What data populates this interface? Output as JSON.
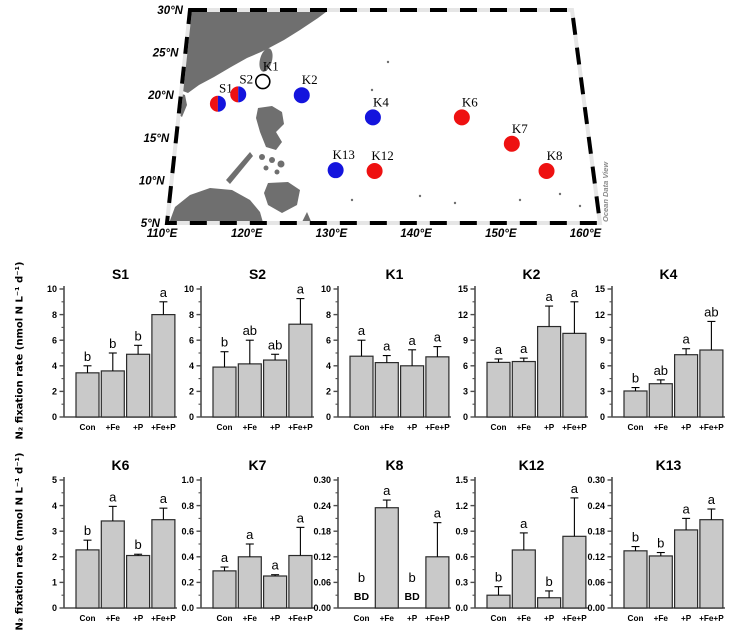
{
  "map": {
    "watermark": "Ocean Data View",
    "lat_labels": [
      "30°N",
      "25°N",
      "20°N",
      "15°N",
      "10°N",
      "5°N"
    ],
    "lon_labels": [
      "110°E",
      "120°E",
      "130°E",
      "140°E",
      "150°E",
      "160°E"
    ],
    "lat_range": [
      5,
      30
    ],
    "lon_range": [
      110,
      160
    ],
    "marker_colors": {
      "red": "#ee1111",
      "blue": "#1414dd",
      "open": "#ffffff",
      "land": "#6f6f6f"
    },
    "stations": [
      {
        "id": "S1",
        "lon": 116.6,
        "lat": 19.0,
        "type": "split"
      },
      {
        "id": "S2",
        "lon": 119.0,
        "lat": 20.1,
        "type": "split"
      },
      {
        "id": "K1",
        "lon": 121.9,
        "lat": 21.6,
        "type": "open"
      },
      {
        "id": "K2",
        "lon": 126.5,
        "lat": 20.0,
        "type": "blue"
      },
      {
        "id": "K4",
        "lon": 134.9,
        "lat": 17.4,
        "type": "blue"
      },
      {
        "id": "K6",
        "lon": 145.4,
        "lat": 17.4,
        "type": "red"
      },
      {
        "id": "K7",
        "lon": 151.3,
        "lat": 14.3,
        "type": "red"
      },
      {
        "id": "K8",
        "lon": 155.4,
        "lat": 11.1,
        "type": "red"
      },
      {
        "id": "K12",
        "lon": 135.1,
        "lat": 11.1,
        "type": "red"
      },
      {
        "id": "K13",
        "lon": 130.5,
        "lat": 11.2,
        "type": "blue"
      }
    ]
  },
  "ylabel": "N₂ fixation rate (nmol N L⁻¹ d⁻¹)",
  "bar_style": {
    "fill": "#c9c9c9",
    "stroke": "#2b2b2b"
  },
  "chart_data": [
    {
      "type": "bar",
      "title": "S1",
      "row": 1,
      "col": 0,
      "ylim": [
        0,
        10
      ],
      "ytick_step": 2,
      "tick_decimals": 0,
      "categories": [
        "Con",
        "+Fe",
        "+P",
        "+Fe+P"
      ],
      "values": [
        3.45,
        3.6,
        4.9,
        8.0
      ],
      "errors": [
        0.55,
        1.4,
        0.7,
        1.0
      ],
      "letters": [
        "b",
        "b",
        "b",
        "a"
      ]
    },
    {
      "type": "bar",
      "title": "S2",
      "row": 1,
      "col": 1,
      "ylim": [
        0,
        10
      ],
      "ytick_step": 2,
      "tick_decimals": 0,
      "categories": [
        "Con",
        "+Fe",
        "+P",
        "+Fe+P"
      ],
      "values": [
        3.9,
        4.15,
        4.45,
        7.25
      ],
      "errors": [
        1.2,
        1.85,
        0.45,
        2.0
      ],
      "letters": [
        "b",
        "ab",
        "ab",
        "a"
      ]
    },
    {
      "type": "bar",
      "title": "K1",
      "row": 1,
      "col": 2,
      "ylim": [
        0,
        10
      ],
      "ytick_step": 2,
      "tick_decimals": 0,
      "categories": [
        "Con",
        "+Fe",
        "+P",
        "+Fe+P"
      ],
      "values": [
        4.75,
        4.25,
        4.0,
        4.7
      ],
      "errors": [
        1.25,
        0.55,
        1.25,
        0.8
      ],
      "letters": [
        "a",
        "a",
        "a",
        "a"
      ]
    },
    {
      "type": "bar",
      "title": "K2",
      "row": 1,
      "col": 3,
      "ylim": [
        0,
        15
      ],
      "ytick_step": 3,
      "tick_decimals": 0,
      "categories": [
        "Con",
        "+Fe",
        "+P",
        "+Fe+P"
      ],
      "values": [
        6.4,
        6.5,
        10.6,
        9.8
      ],
      "errors": [
        0.4,
        0.4,
        2.4,
        3.7
      ],
      "letters": [
        "a",
        "a",
        "a",
        "a"
      ]
    },
    {
      "type": "bar",
      "title": "K4",
      "row": 1,
      "col": 4,
      "ylim": [
        0,
        15
      ],
      "ytick_step": 3,
      "tick_decimals": 0,
      "categories": [
        "Con",
        "+Fe",
        "+P",
        "+Fe+P"
      ],
      "values": [
        3.05,
        3.9,
        7.3,
        7.85
      ],
      "errors": [
        0.4,
        0.45,
        0.7,
        3.35
      ],
      "letters": [
        "b",
        "ab",
        "a",
        "ab"
      ]
    },
    {
      "type": "bar",
      "title": "K6",
      "row": 2,
      "col": 0,
      "ylim": [
        0,
        5
      ],
      "ytick_step": 1,
      "tick_decimals": 0,
      "categories": [
        "Con",
        "+Fe",
        "+P",
        "+Fe+P"
      ],
      "values": [
        2.27,
        3.4,
        2.05,
        3.45
      ],
      "errors": [
        0.38,
        0.57,
        0.05,
        0.45
      ],
      "letters": [
        "b",
        "a",
        "b",
        "a"
      ]
    },
    {
      "type": "bar",
      "title": "K7",
      "row": 2,
      "col": 1,
      "ylim": [
        0,
        1.0
      ],
      "ytick_step": 0.2,
      "tick_decimals": 1,
      "categories": [
        "Con",
        "+Fe",
        "+P",
        "+Fe+P"
      ],
      "values": [
        0.29,
        0.4,
        0.25,
        0.41
      ],
      "errors": [
        0.03,
        0.1,
        0.01,
        0.22
      ],
      "letters": [
        "a",
        "a",
        "a",
        "a"
      ]
    },
    {
      "type": "bar",
      "title": "K8",
      "row": 2,
      "col": 2,
      "ylim": [
        0,
        0.3
      ],
      "ytick_step": 0.06,
      "tick_decimals": 2,
      "categories": [
        "Con",
        "+Fe",
        "+P",
        "+Fe+P"
      ],
      "values": [
        null,
        0.235,
        null,
        0.12
      ],
      "errors": [
        null,
        0.018,
        null,
        0.08
      ],
      "letters": [
        "b",
        "a",
        "b",
        "a"
      ],
      "below_detection": [
        true,
        false,
        true,
        false
      ],
      "bd_label": "BD"
    },
    {
      "type": "bar",
      "title": "K12",
      "row": 2,
      "col": 3,
      "ylim": [
        0,
        1.5
      ],
      "ytick_step": 0.3,
      "tick_decimals": 1,
      "categories": [
        "Con",
        "+Fe",
        "+P",
        "+Fe+P"
      ],
      "values": [
        0.15,
        0.68,
        0.12,
        0.84
      ],
      "errors": [
        0.1,
        0.2,
        0.08,
        0.45
      ],
      "letters": [
        "b",
        "a",
        "b",
        "a"
      ]
    },
    {
      "type": "bar",
      "title": "K13",
      "row": 2,
      "col": 4,
      "ylim": [
        0,
        0.3
      ],
      "ytick_step": 0.06,
      "tick_decimals": 2,
      "categories": [
        "Con",
        "+Fe",
        "+P",
        "+Fe+P"
      ],
      "values": [
        0.134,
        0.122,
        0.183,
        0.207
      ],
      "errors": [
        0.01,
        0.008,
        0.027,
        0.025
      ],
      "letters": [
        "b",
        "b",
        "a",
        "a"
      ]
    }
  ]
}
